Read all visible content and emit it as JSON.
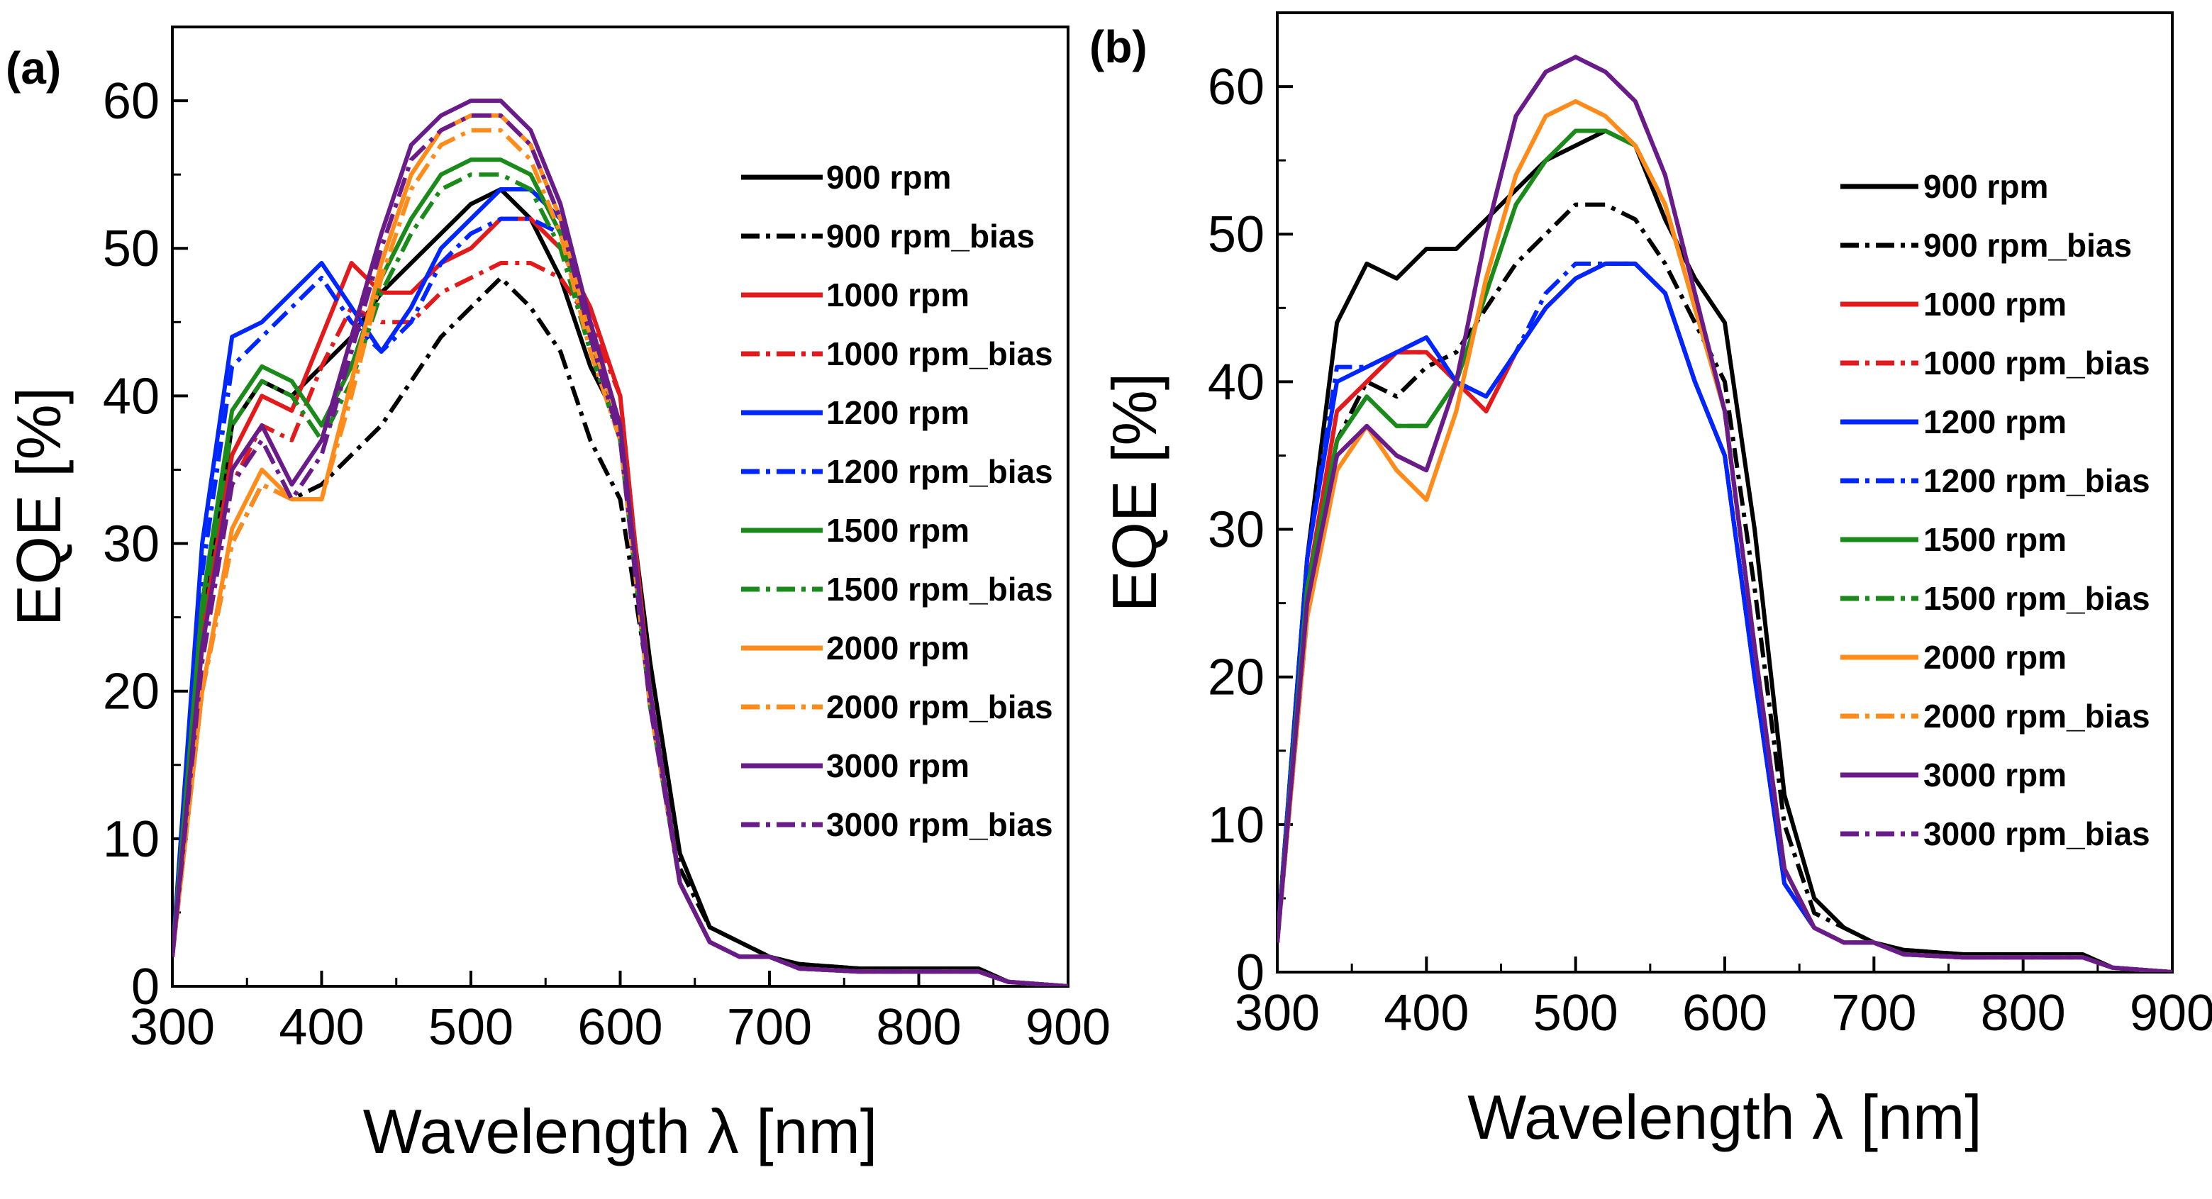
{
  "chart_data": [
    {
      "type": "line",
      "panel_label": "(a)",
      "xlabel": "Wavelength λ [nm]",
      "ylabel": "EQE [%]",
      "xlim": [
        300,
        900
      ],
      "ylim": [
        0,
        65
      ],
      "xticks": [
        "300",
        "400",
        "500",
        "600",
        "700",
        "800",
        "900"
      ],
      "yticks": [
        "0",
        "10",
        "20",
        "30",
        "40",
        "50",
        "60"
      ],
      "legend_position": "top-right",
      "x": [
        300,
        320,
        340,
        360,
        380,
        400,
        420,
        440,
        460,
        480,
        500,
        520,
        540,
        560,
        580,
        600,
        620,
        640,
        660,
        680,
        700,
        720,
        760,
        800,
        840,
        860,
        900
      ],
      "series": [
        {
          "name": "900 rpm",
          "color": "#000000",
          "style": "solid",
          "values": [
            2,
            24,
            38,
            41,
            40,
            42,
            44,
            47,
            49,
            51,
            53,
            54,
            52,
            48,
            42,
            38,
            22,
            9,
            4,
            3,
            2,
            1.5,
            1.2,
            1.2,
            1.2,
            0.3,
            0
          ]
        },
        {
          "name": "900 rpm_bias",
          "color": "#000000",
          "style": "dashdot",
          "values": [
            2,
            20,
            30,
            34,
            33,
            34,
            36,
            38,
            41,
            44,
            46,
            48,
            46,
            43,
            37,
            33,
            20,
            8,
            4,
            3,
            2,
            1.5,
            1.2,
            1.2,
            1.2,
            0.3,
            0
          ]
        },
        {
          "name": "1000 rpm",
          "color": "#e31a1c",
          "style": "solid",
          "values": [
            2,
            24,
            36,
            40,
            39,
            44,
            49,
            47,
            47,
            49,
            50,
            52,
            52,
            50,
            46,
            40,
            20,
            7,
            3,
            2,
            2,
            1.2,
            1,
            1,
            1,
            0.3,
            0
          ]
        },
        {
          "name": "1000 rpm_bias",
          "color": "#e31a1c",
          "style": "dashdot",
          "values": [
            2,
            22,
            34,
            38,
            37,
            42,
            46,
            45,
            45,
            47,
            48,
            49,
            49,
            48,
            45,
            40,
            20,
            7,
            3,
            2,
            2,
            1.2,
            1,
            1,
            1,
            0.3,
            0
          ]
        },
        {
          "name": "1200 rpm",
          "color": "#0026ff",
          "style": "solid",
          "values": [
            2,
            30,
            44,
            45,
            47,
            49,
            46,
            43,
            46,
            50,
            52,
            54,
            54,
            52,
            45,
            38,
            20,
            7,
            3,
            2,
            2,
            1.2,
            1,
            1,
            1,
            0.3,
            0
          ]
        },
        {
          "name": "1200 rpm_bias",
          "color": "#0026ff",
          "style": "dashdot",
          "values": [
            2,
            28,
            42,
            44,
            46,
            48,
            45,
            43,
            45,
            49,
            51,
            52,
            52,
            51,
            44,
            37,
            19,
            7,
            3,
            2,
            2,
            1.2,
            1,
            1,
            1,
            0.3,
            0
          ]
        },
        {
          "name": "1500 rpm",
          "color": "#1a8a1a",
          "style": "solid",
          "values": [
            2,
            26,
            39,
            42,
            41,
            38,
            42,
            48,
            52,
            55,
            56,
            56,
            55,
            51,
            44,
            38,
            20,
            7,
            3,
            2,
            2,
            1.2,
            1,
            1,
            1,
            0.3,
            0
          ]
        },
        {
          "name": "1500 rpm_bias",
          "color": "#1a8a1a",
          "style": "dashdot",
          "values": [
            2,
            25,
            38,
            41,
            40,
            37,
            41,
            47,
            51,
            54,
            55,
            55,
            54,
            50,
            43,
            37,
            19,
            7,
            3,
            2,
            2,
            1.2,
            1,
            1,
            1,
            0.3,
            0
          ]
        },
        {
          "name": "2000 rpm",
          "color": "#ff8c1a",
          "style": "solid",
          "values": [
            2,
            20,
            31,
            35,
            33,
            33,
            41,
            49,
            55,
            58,
            59,
            59,
            57,
            52,
            44,
            38,
            20,
            7,
            3,
            2,
            2,
            1.2,
            1,
            1,
            1,
            0.3,
            0
          ]
        },
        {
          "name": "2000 rpm_bias",
          "color": "#ff8c1a",
          "style": "dashdot",
          "values": [
            2,
            20,
            30,
            34,
            33,
            33,
            40,
            48,
            54,
            57,
            58,
            58,
            56,
            51,
            43,
            37,
            19,
            7,
            3,
            2,
            2,
            1.2,
            1,
            1,
            1,
            0.3,
            0
          ]
        },
        {
          "name": "3000 rpm",
          "color": "#6a1b8a",
          "style": "solid",
          "values": [
            2,
            23,
            35,
            38,
            34,
            37,
            44,
            51,
            57,
            59,
            60,
            60,
            58,
            53,
            45,
            38,
            20,
            7,
            3,
            2,
            2,
            1.2,
            1,
            1,
            1,
            0.3,
            0
          ]
        },
        {
          "name": "3000 rpm_bias",
          "color": "#6a1b8a",
          "style": "dashdot",
          "values": [
            2,
            22,
            34,
            37,
            33,
            36,
            43,
            50,
            56,
            58,
            59,
            59,
            57,
            52,
            44,
            37,
            19,
            7,
            3,
            2,
            2,
            1.2,
            1,
            1,
            1,
            0.3,
            0
          ]
        }
      ]
    },
    {
      "type": "line",
      "panel_label": "(b)",
      "xlabel": "Wavelength λ [nm]",
      "ylabel": "EQE [%]",
      "xlim": [
        300,
        900
      ],
      "ylim": [
        0,
        65
      ],
      "xticks": [
        "300",
        "400",
        "500",
        "600",
        "700",
        "800",
        "900"
      ],
      "yticks": [
        "0",
        "10",
        "20",
        "30",
        "40",
        "50",
        "60"
      ],
      "legend_position": "top-right",
      "x": [
        300,
        320,
        340,
        360,
        380,
        400,
        420,
        440,
        460,
        480,
        500,
        520,
        540,
        560,
        580,
        600,
        620,
        640,
        660,
        680,
        700,
        720,
        760,
        800,
        840,
        860,
        900
      ],
      "series": [
        {
          "name": "900 rpm",
          "color": "#000000",
          "style": "solid",
          "values": [
            2,
            28,
            44,
            48,
            47,
            49,
            49,
            51,
            53,
            55,
            56,
            57,
            56,
            51,
            47,
            44,
            30,
            12,
            5,
            3,
            2,
            1.5,
            1.2,
            1.2,
            1.2,
            0.3,
            0
          ]
        },
        {
          "name": "900 rpm_bias",
          "color": "#000000",
          "style": "dashdot",
          "values": [
            2,
            24,
            36,
            40,
            39,
            41,
            42,
            45,
            48,
            50,
            52,
            52,
            51,
            48,
            44,
            40,
            26,
            10,
            4,
            3,
            2,
            1.5,
            1.2,
            1.2,
            1.2,
            0.3,
            0
          ]
        },
        {
          "name": "1000 rpm",
          "color": "#e31a1c",
          "style": "solid",
          "values": [
            2,
            26,
            38,
            40,
            42,
            42,
            40,
            38,
            42,
            45,
            47,
            48,
            48,
            46,
            40,
            35,
            20,
            6,
            3,
            2,
            2,
            1.2,
            1,
            1,
            1,
            0.3,
            0
          ]
        },
        {
          "name": "1000 rpm_bias",
          "color": "#e31a1c",
          "style": "dashdot",
          "values": [
            2,
            26,
            38,
            40,
            42,
            42,
            40,
            38,
            42,
            45,
            47,
            48,
            48,
            46,
            40,
            35,
            20,
            6,
            3,
            2,
            2,
            1.2,
            1,
            1,
            1,
            0.3,
            0
          ]
        },
        {
          "name": "1200 rpm",
          "color": "#0026ff",
          "style": "solid",
          "values": [
            2,
            28,
            40,
            41,
            42,
            43,
            40,
            39,
            42,
            45,
            47,
            48,
            48,
            46,
            40,
            35,
            20,
            6,
            3,
            2,
            2,
            1.2,
            1,
            1,
            1,
            0.3,
            0
          ]
        },
        {
          "name": "1200 rpm_bias",
          "color": "#0026ff",
          "style": "dashdot",
          "values": [
            2,
            28,
            41,
            41,
            42,
            43,
            40,
            39,
            42,
            46,
            48,
            48,
            48,
            46,
            40,
            35,
            20,
            6,
            3,
            2,
            2,
            1.2,
            1,
            1,
            1,
            0.3,
            0
          ]
        },
        {
          "name": "1500 rpm",
          "color": "#1a8a1a",
          "style": "solid",
          "values": [
            2,
            26,
            36,
            39,
            37,
            37,
            40,
            46,
            52,
            55,
            57,
            57,
            56,
            52,
            45,
            38,
            22,
            7,
            3,
            2,
            2,
            1.2,
            1,
            1,
            1,
            0.3,
            0
          ]
        },
        {
          "name": "1500 rpm_bias",
          "color": "#1a8a1a",
          "style": "dashdot",
          "values": [
            2,
            26,
            36,
            39,
            37,
            37,
            40,
            46,
            52,
            55,
            57,
            57,
            56,
            52,
            45,
            38,
            22,
            7,
            3,
            2,
            2,
            1.2,
            1,
            1,
            1,
            0.3,
            0
          ]
        },
        {
          "name": "2000 rpm",
          "color": "#ff8c1a",
          "style": "solid",
          "values": [
            2,
            24,
            34,
            37,
            34,
            32,
            38,
            47,
            54,
            58,
            59,
            58,
            56,
            52,
            45,
            38,
            22,
            7,
            3,
            2,
            2,
            1.2,
            1,
            1,
            1,
            0.3,
            0
          ]
        },
        {
          "name": "2000 rpm_bias",
          "color": "#ff8c1a",
          "style": "dashdot",
          "values": [
            2,
            24,
            34,
            37,
            34,
            32,
            38,
            47,
            54,
            58,
            59,
            58,
            56,
            52,
            45,
            38,
            22,
            7,
            3,
            2,
            2,
            1.2,
            1,
            1,
            1,
            0.3,
            0
          ]
        },
        {
          "name": "3000 rpm",
          "color": "#6a1b8a",
          "style": "solid",
          "values": [
            2,
            25,
            35,
            37,
            35,
            34,
            40,
            50,
            58,
            61,
            62,
            61,
            59,
            54,
            46,
            38,
            22,
            7,
            3,
            2,
            2,
            1.2,
            1,
            1,
            1,
            0.3,
            0
          ]
        },
        {
          "name": "3000 rpm_bias",
          "color": "#6a1b8a",
          "style": "dashdot",
          "values": [
            2,
            25,
            35,
            37,
            35,
            34,
            40,
            50,
            58,
            61,
            62,
            61,
            59,
            54,
            46,
            38,
            22,
            7,
            3,
            2,
            2,
            1.2,
            1,
            1,
            1,
            0.3,
            0
          ]
        }
      ]
    }
  ]
}
